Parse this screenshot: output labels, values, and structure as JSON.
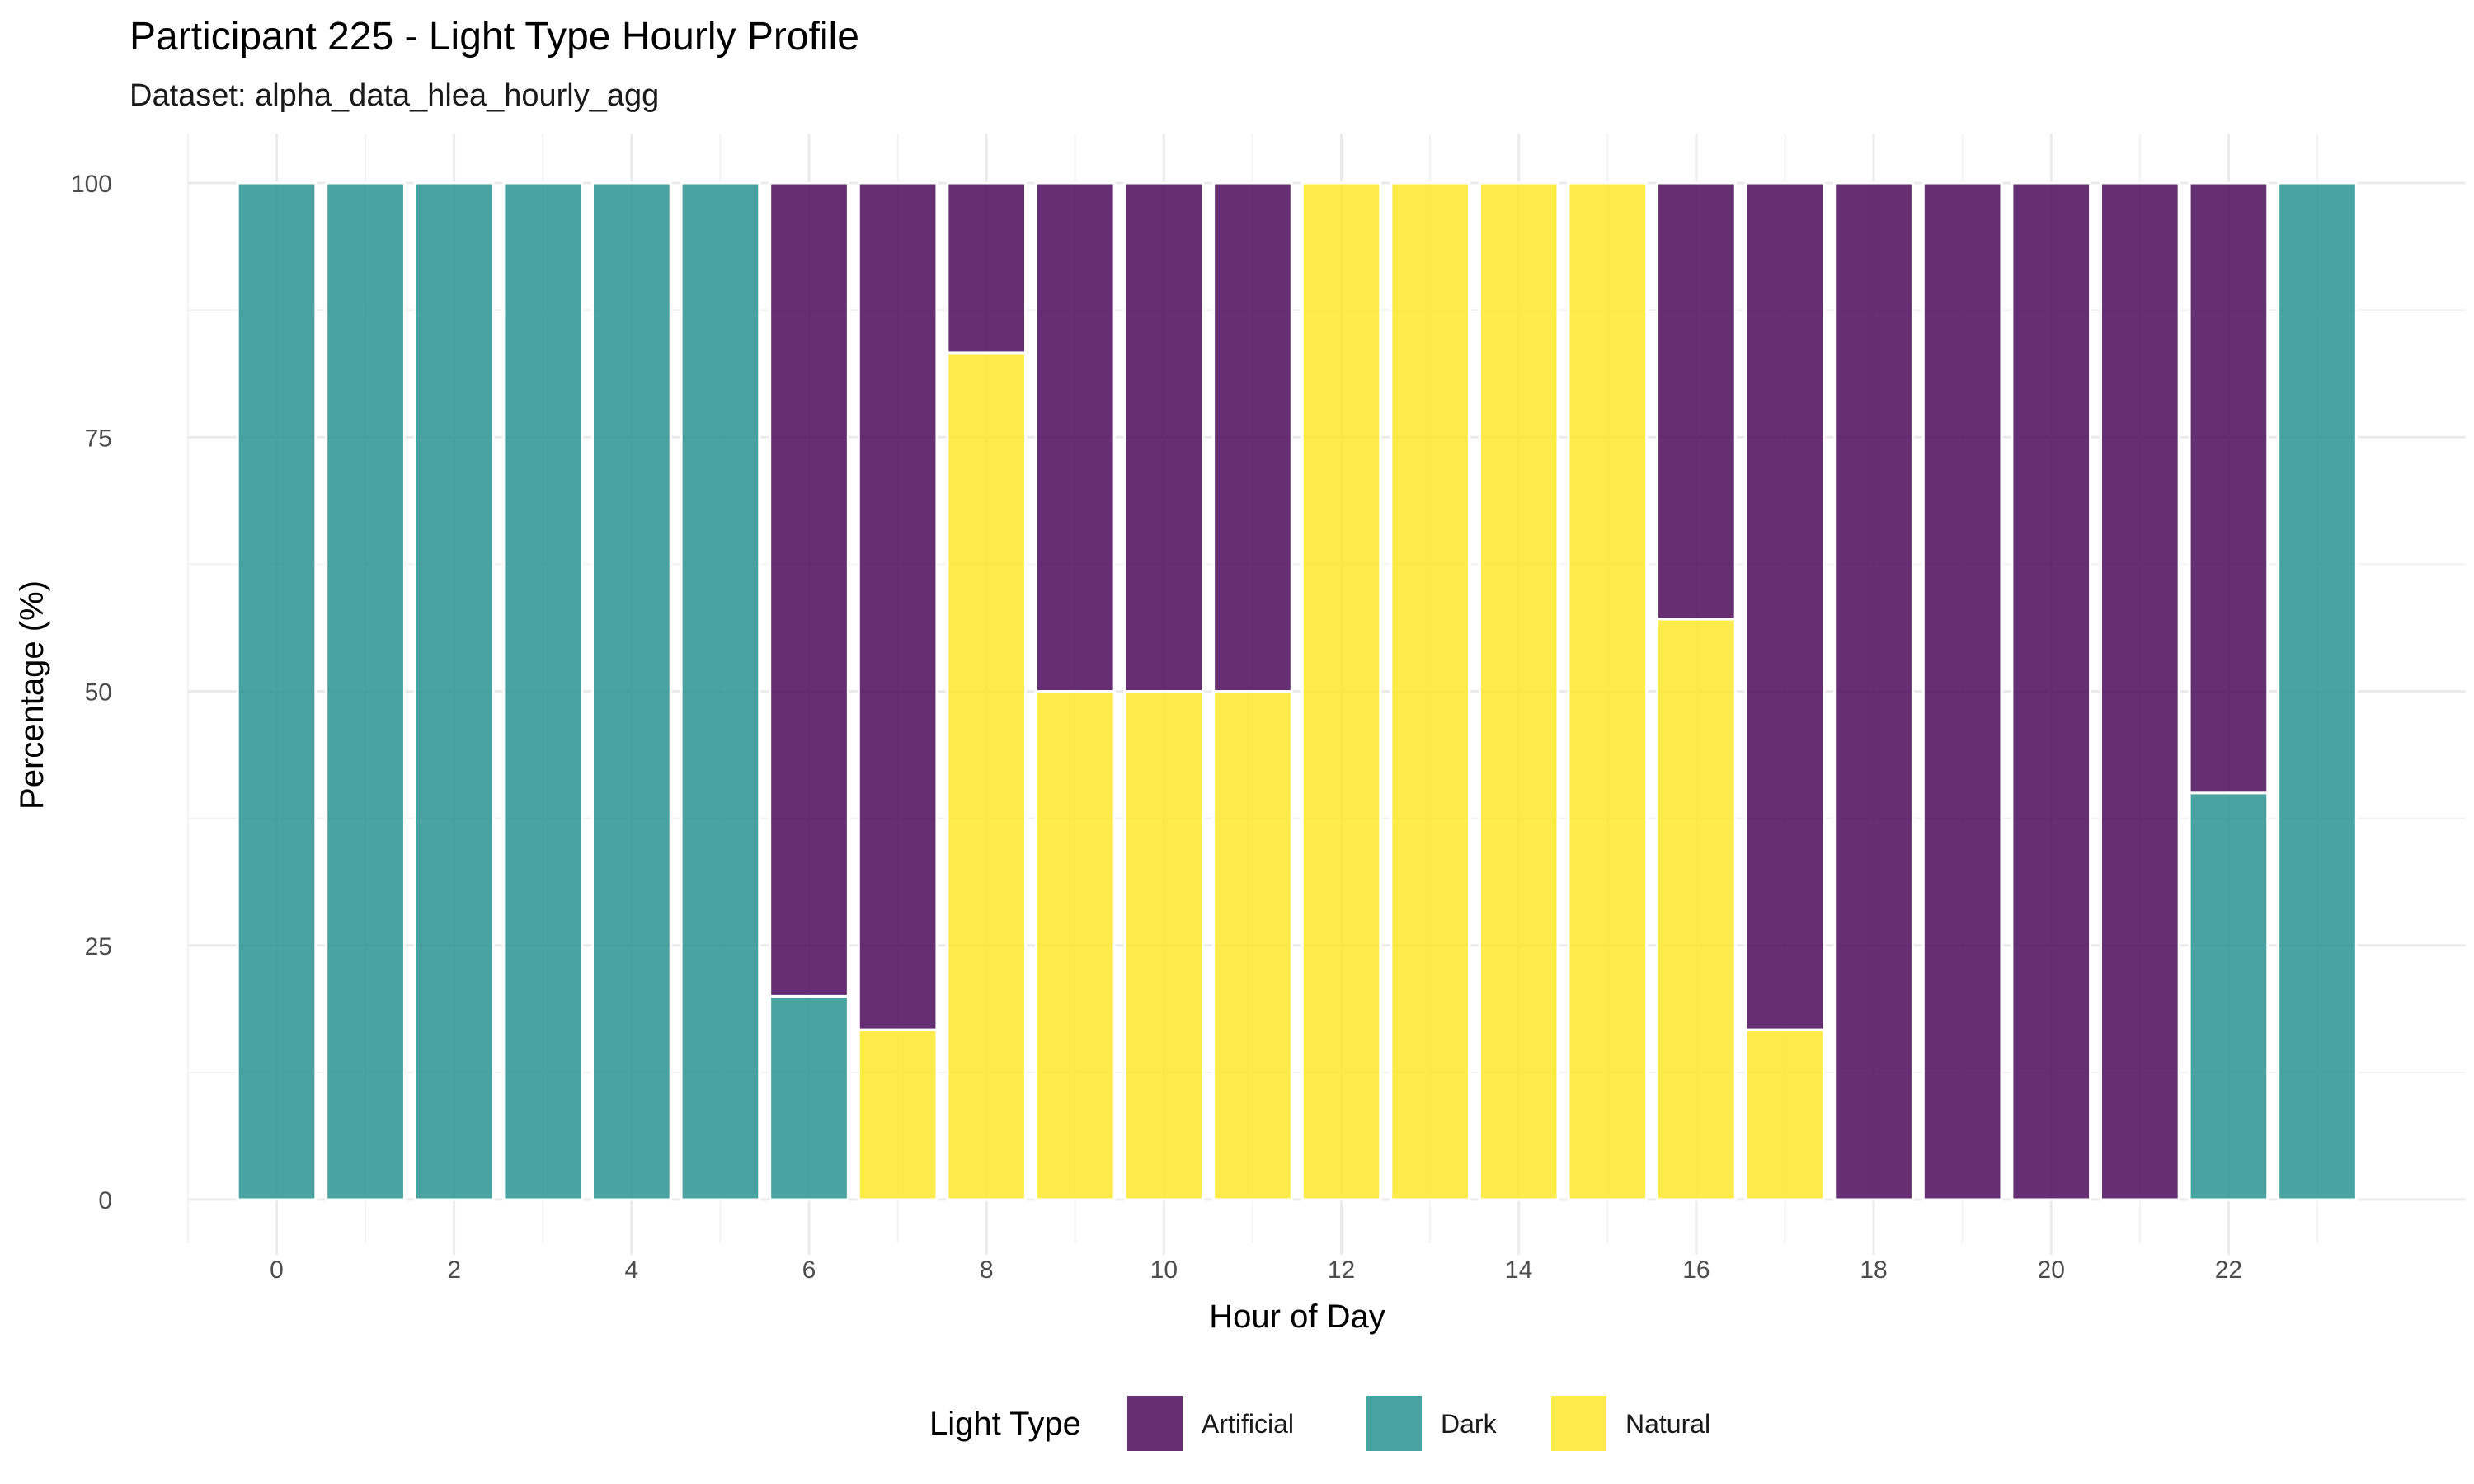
{
  "chart_data": {
    "type": "bar",
    "stacked": true,
    "title": "Participant 225 - Light Type Hourly Profile",
    "subtitle": "Dataset: alpha_data_hlea_hourly_agg",
    "xlabel": "Hour of Day",
    "ylabel": "Percentage (%)",
    "ylim": [
      0,
      100
    ],
    "xlim": [
      -1,
      24
    ],
    "y_ticks": [
      "0",
      "25",
      "50",
      "75",
      "100"
    ],
    "y_tick_values": [
      0,
      25,
      50,
      75,
      100
    ],
    "x_ticks": [
      "0",
      "2",
      "4",
      "6",
      "8",
      "10",
      "12",
      "14",
      "16",
      "18",
      "20",
      "22"
    ],
    "x_tick_values": [
      0,
      2,
      4,
      6,
      8,
      10,
      12,
      14,
      16,
      18,
      20,
      22
    ],
    "grid": true,
    "legend": {
      "title": "Light Type",
      "position": "bottom"
    },
    "categories": [
      0,
      1,
      2,
      3,
      4,
      5,
      6,
      7,
      8,
      9,
      10,
      11,
      12,
      13,
      14,
      15,
      16,
      17,
      18,
      19,
      20,
      21,
      22,
      23
    ],
    "stack_order": [
      "Dark",
      "Natural",
      "Artificial"
    ],
    "series": [
      {
        "name": "Artificial",
        "color": "#440154",
        "values": [
          0,
          0,
          0,
          0,
          0,
          0,
          80,
          83.3,
          16.7,
          50,
          50,
          50,
          0,
          0,
          0,
          0,
          42.9,
          83.3,
          100,
          100,
          100,
          100,
          60,
          0
        ]
      },
      {
        "name": "Dark",
        "color": "#21908C",
        "values": [
          100,
          100,
          100,
          100,
          100,
          100,
          20,
          0,
          0,
          0,
          0,
          0,
          0,
          0,
          0,
          0,
          0,
          0,
          0,
          0,
          0,
          0,
          40,
          100
        ]
      },
      {
        "name": "Natural",
        "color": "#FDE725",
        "values": [
          0,
          0,
          0,
          0,
          0,
          0,
          0,
          16.7,
          83.3,
          50,
          50,
          50,
          100,
          100,
          100,
          100,
          57.1,
          16.7,
          0,
          0,
          0,
          0,
          0,
          0
        ]
      }
    ]
  }
}
